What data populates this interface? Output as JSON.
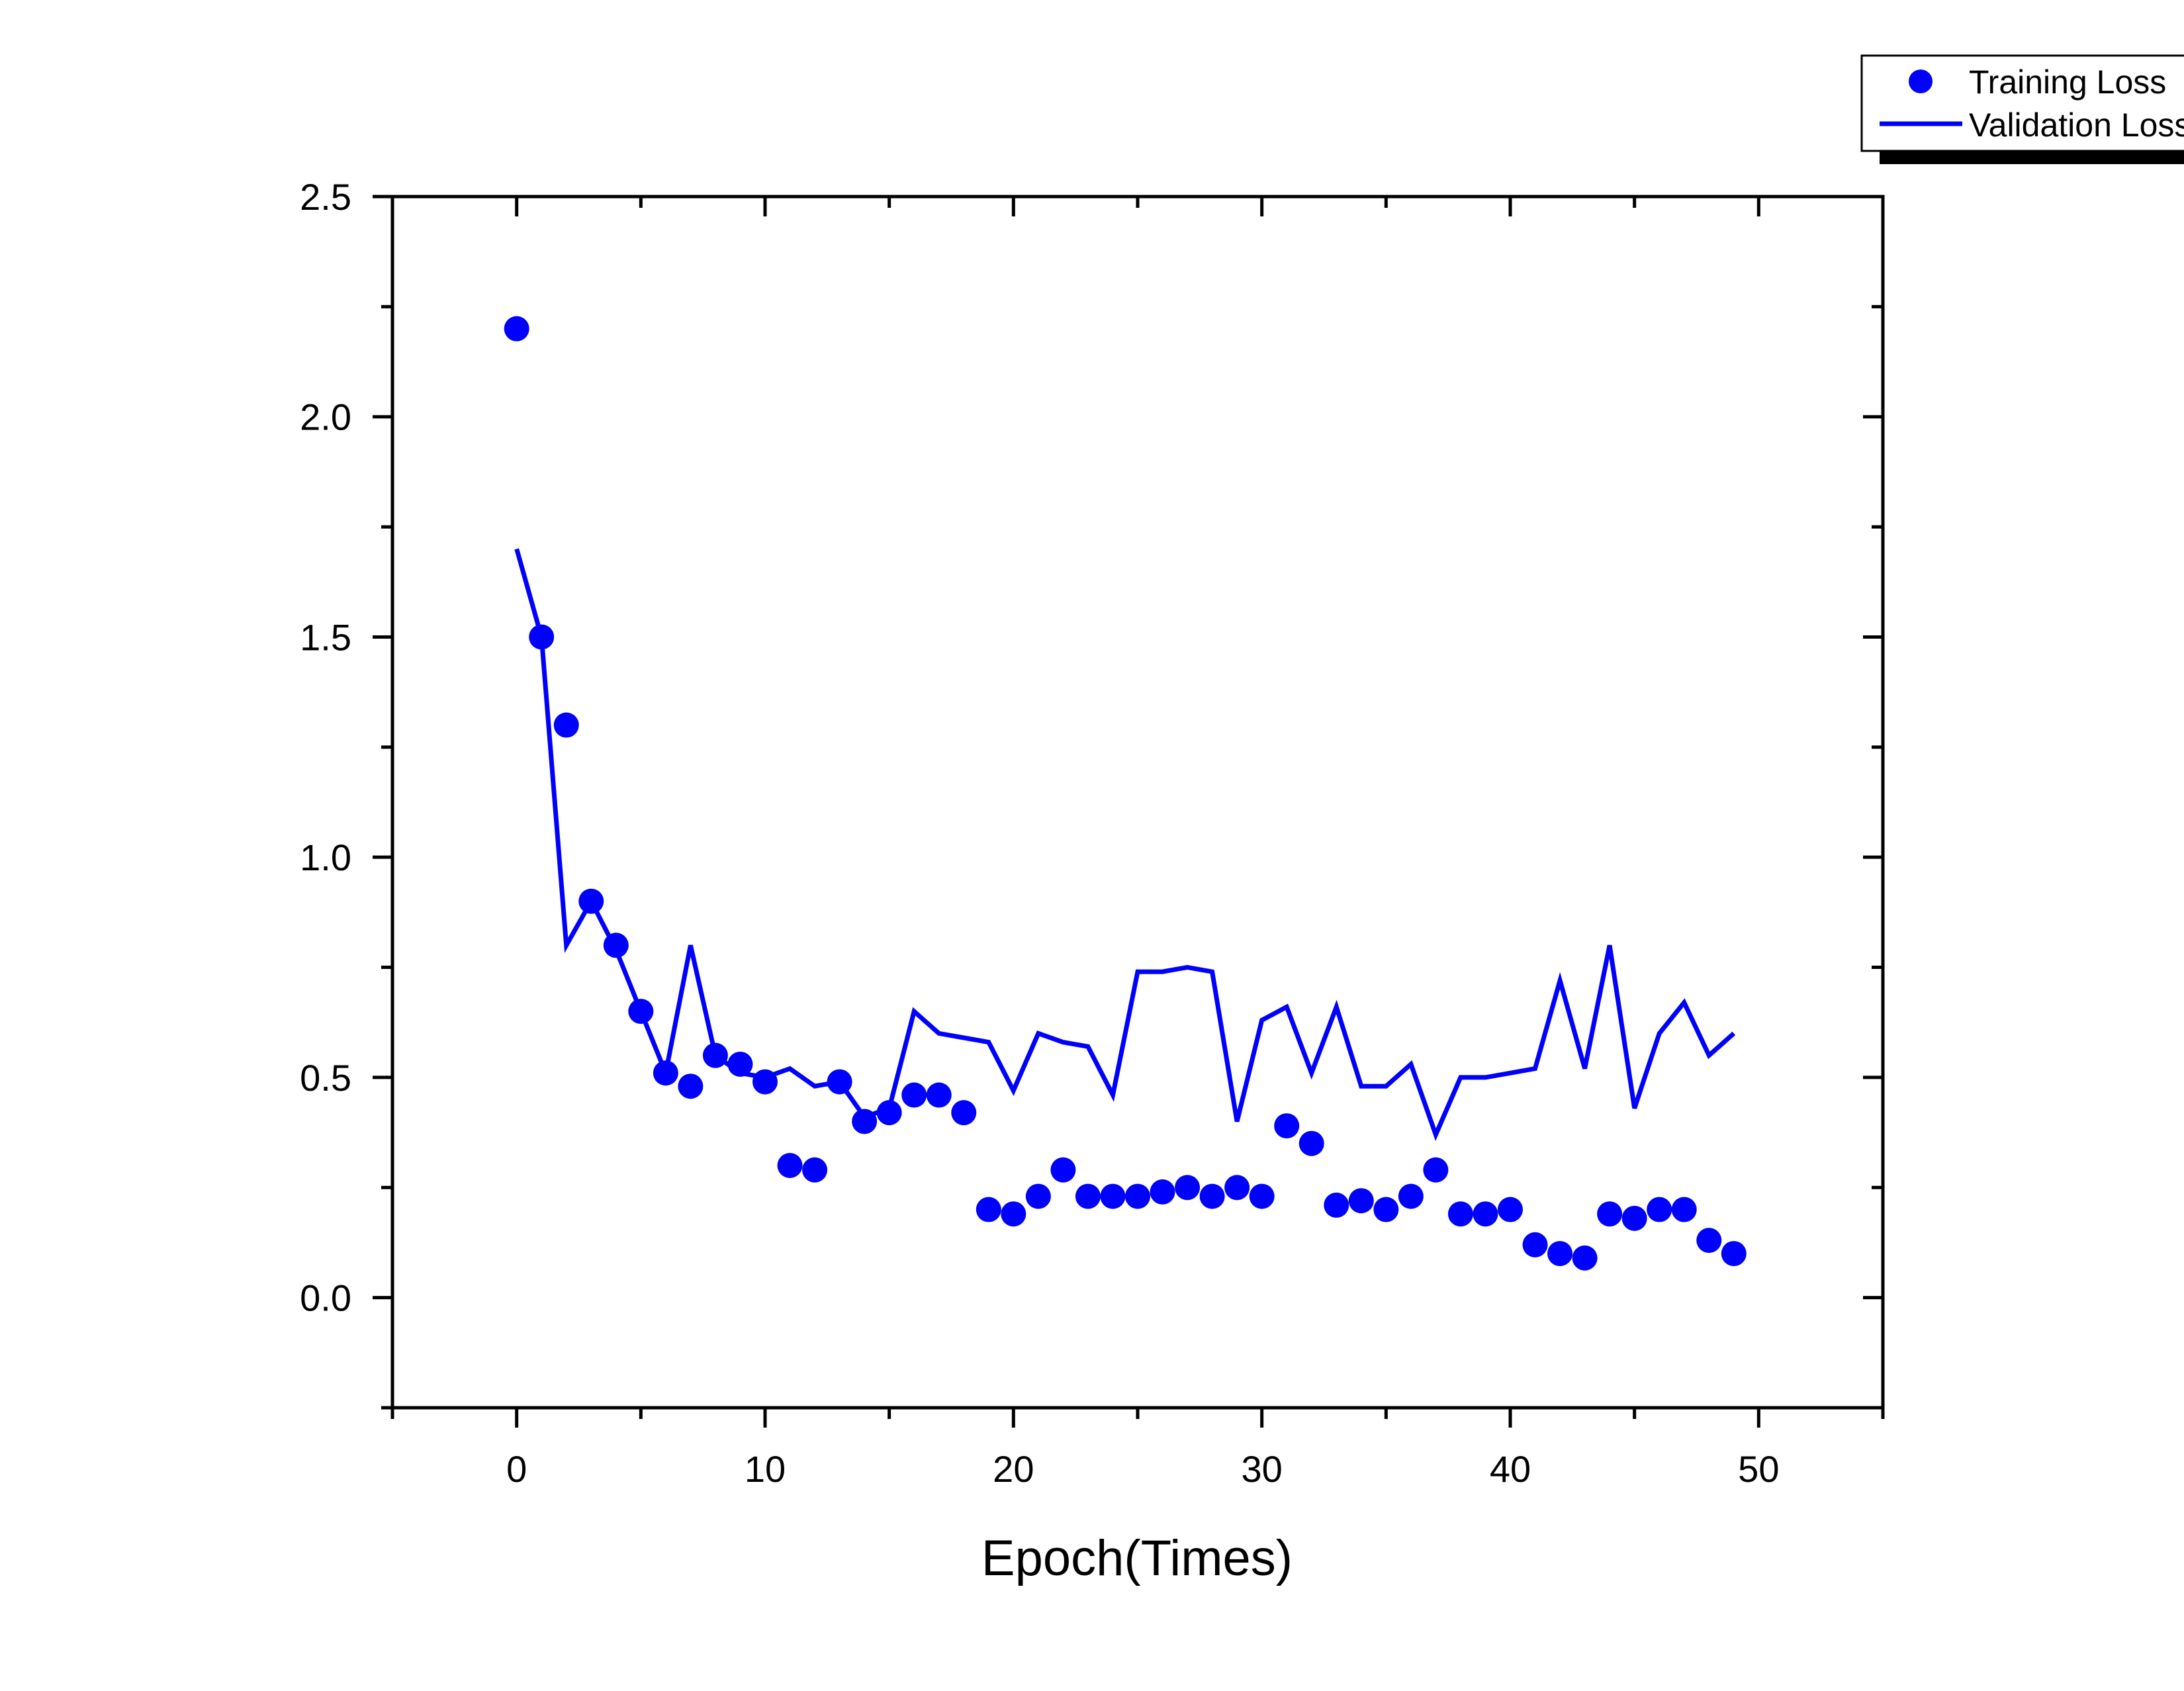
{
  "chart_data": {
    "type": "scatter",
    "title": "",
    "xlabel": "Epoch(Times)",
    "ylabel": "",
    "xlim": [
      -5,
      55
    ],
    "ylim": [
      -0.25,
      2.5
    ],
    "x_major_ticks": [
      0,
      10,
      20,
      30,
      40,
      50
    ],
    "x_tick_labels": [
      "0",
      "10",
      "20",
      "30",
      "40",
      "50"
    ],
    "y_major_ticks": [
      0.0,
      0.5,
      1.0,
      1.5,
      2.0,
      2.5
    ],
    "y_tick_labels": [
      "0.0",
      "0.5",
      "1.0",
      "1.5",
      "2.0",
      "2.5"
    ],
    "grid": false,
    "legend_position": "top-right",
    "colors": {
      "series": "#0000ff",
      "axis": "#000000",
      "background": "#ffffff"
    },
    "series": [
      {
        "name": "Training Loss",
        "kind": "scatter",
        "x": [
          0,
          1,
          2,
          3,
          4,
          5,
          6,
          7,
          8,
          9,
          10,
          11,
          12,
          13,
          14,
          15,
          16,
          17,
          18,
          19,
          20,
          21,
          22,
          23,
          24,
          25,
          26,
          27,
          28,
          29,
          30,
          31,
          32,
          33,
          34,
          35,
          36,
          37,
          38,
          39,
          40,
          41,
          42,
          43,
          44,
          45,
          46,
          47,
          48,
          49
        ],
        "values": [
          2.2,
          1.5,
          1.3,
          0.9,
          0.8,
          0.65,
          0.51,
          0.48,
          0.55,
          0.53,
          0.49,
          0.3,
          0.29,
          0.49,
          0.4,
          0.42,
          0.46,
          0.46,
          0.42,
          0.2,
          0.19,
          0.23,
          0.29,
          0.23,
          0.23,
          0.23,
          0.24,
          0.25,
          0.23,
          0.25,
          0.23,
          0.39,
          0.35,
          0.21,
          0.22,
          0.2,
          0.23,
          0.29,
          0.19,
          0.19,
          0.2,
          0.12,
          0.1,
          0.09,
          0.19,
          0.18,
          0.2,
          0.2,
          0.13,
          0.1
        ]
      },
      {
        "name": "Validation Loss",
        "kind": "line",
        "x": [
          0,
          1,
          2,
          3,
          4,
          5,
          6,
          7,
          8,
          9,
          10,
          11,
          12,
          13,
          14,
          15,
          16,
          17,
          18,
          19,
          20,
          21,
          22,
          23,
          24,
          25,
          26,
          27,
          28,
          29,
          30,
          31,
          32,
          33,
          34,
          35,
          36,
          37,
          38,
          39,
          40,
          41,
          42,
          43,
          44,
          45,
          46,
          47,
          48,
          49
        ],
        "values": [
          1.7,
          1.5,
          0.8,
          0.9,
          0.79,
          0.65,
          0.51,
          0.8,
          0.55,
          0.51,
          0.5,
          0.52,
          0.48,
          0.49,
          0.41,
          0.43,
          0.65,
          0.6,
          0.59,
          0.58,
          0.47,
          0.6,
          0.58,
          0.57,
          0.46,
          0.74,
          0.74,
          0.75,
          0.74,
          0.4,
          0.63,
          0.66,
          0.51,
          0.66,
          0.48,
          0.48,
          0.53,
          0.37,
          0.5,
          0.5,
          0.51,
          0.52,
          0.72,
          0.52,
          0.8,
          0.43,
          0.6,
          0.67,
          0.55,
          0.6
        ]
      }
    ]
  }
}
